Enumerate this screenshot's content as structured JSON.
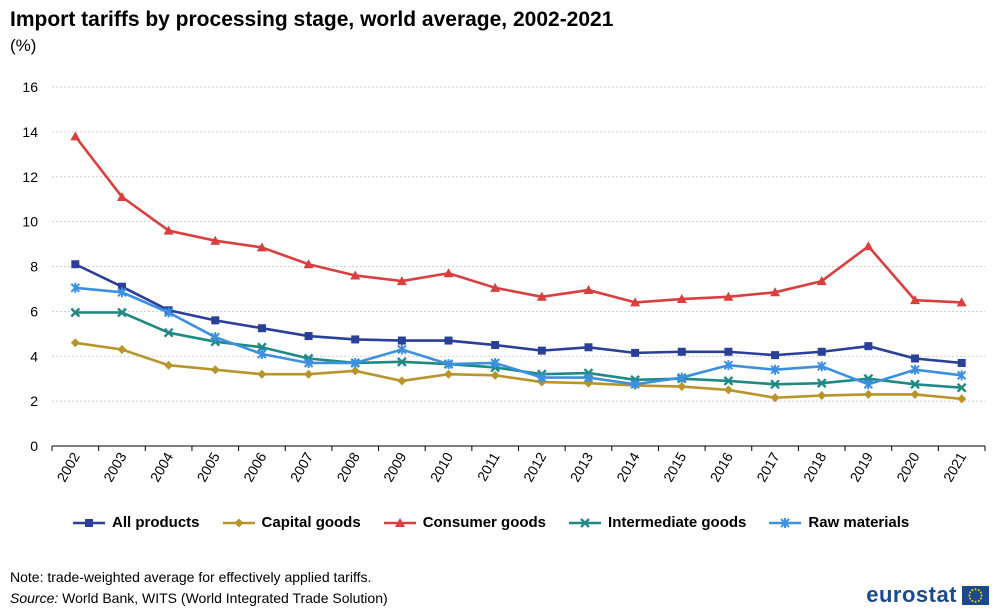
{
  "header": {
    "title": "Import tariffs by processing stage, world average, 2002-2021",
    "unit": "(%)"
  },
  "colors": {
    "all_products": "#2a3f97",
    "capital_goods": "#b8952a",
    "consumer_goods": "#d93f3f",
    "intermediate_goods": "#1f8a84",
    "raw_materials": "#3d8fe0",
    "gridline": "#bfbfbf",
    "brand": "#1b4a8c"
  },
  "chart_data": {
    "type": "line",
    "title": "Import tariffs by processing stage, world average, 2002-2021",
    "ylabel": "(%)",
    "xlabel": "",
    "ylim": [
      0,
      16
    ],
    "yticks": [
      "0",
      "2",
      "4",
      "6",
      "8",
      "10",
      "12",
      "14",
      "16"
    ],
    "categories": [
      "2002",
      "2003",
      "2004",
      "2005",
      "2006",
      "2007",
      "2008",
      "2009",
      "2010",
      "2011",
      "2012",
      "2013",
      "2014",
      "2015",
      "2016",
      "2017",
      "2018",
      "2019",
      "2020",
      "2021"
    ],
    "grid": "horizontal",
    "legend_position": "bottom",
    "series": [
      {
        "name": "All products",
        "key": "all_products",
        "marker": "square",
        "values": [
          8.1,
          7.1,
          6.05,
          5.6,
          5.25,
          4.9,
          4.75,
          4.7,
          4.7,
          4.5,
          4.25,
          4.4,
          4.15,
          4.2,
          4.2,
          4.05,
          4.2,
          4.45,
          3.9,
          3.7
        ]
      },
      {
        "name": "Capital goods",
        "key": "capital_goods",
        "marker": "diamond",
        "values": [
          4.6,
          4.3,
          3.6,
          3.4,
          3.2,
          3.2,
          3.35,
          2.9,
          3.2,
          3.15,
          2.85,
          2.8,
          2.7,
          2.65,
          2.5,
          2.15,
          2.25,
          2.3,
          2.3,
          2.1
        ]
      },
      {
        "name": "Consumer goods",
        "key": "consumer_goods",
        "marker": "triangle",
        "values": [
          13.8,
          11.1,
          9.6,
          9.15,
          8.85,
          8.1,
          7.6,
          7.35,
          7.7,
          7.05,
          6.65,
          6.95,
          6.4,
          6.55,
          6.65,
          6.85,
          7.35,
          8.9,
          6.5,
          6.4
        ]
      },
      {
        "name": "Intermediate goods",
        "key": "intermediate_goods",
        "marker": "x",
        "values": [
          5.95,
          5.95,
          5.05,
          4.65,
          4.4,
          3.9,
          3.7,
          3.75,
          3.65,
          3.5,
          3.2,
          3.25,
          2.95,
          3.0,
          2.9,
          2.75,
          2.8,
          3.0,
          2.75,
          2.6
        ]
      },
      {
        "name": "Raw materials",
        "key": "raw_materials",
        "marker": "star",
        "values": [
          7.05,
          6.85,
          5.95,
          4.85,
          4.1,
          3.7,
          3.7,
          4.3,
          3.65,
          3.7,
          3.05,
          3.05,
          2.75,
          3.05,
          3.6,
          3.4,
          3.55,
          2.75,
          3.4,
          3.15
        ]
      }
    ]
  },
  "footer": {
    "note": "Note: trade-weighted average for effectively  applied tariffs.",
    "source_label": "Source:",
    "source_text": " World Bank, WITS (World Integrated  Trade Solution)",
    "brand_name": "eurostat",
    "brand_icon": "eu-flag-icon"
  }
}
